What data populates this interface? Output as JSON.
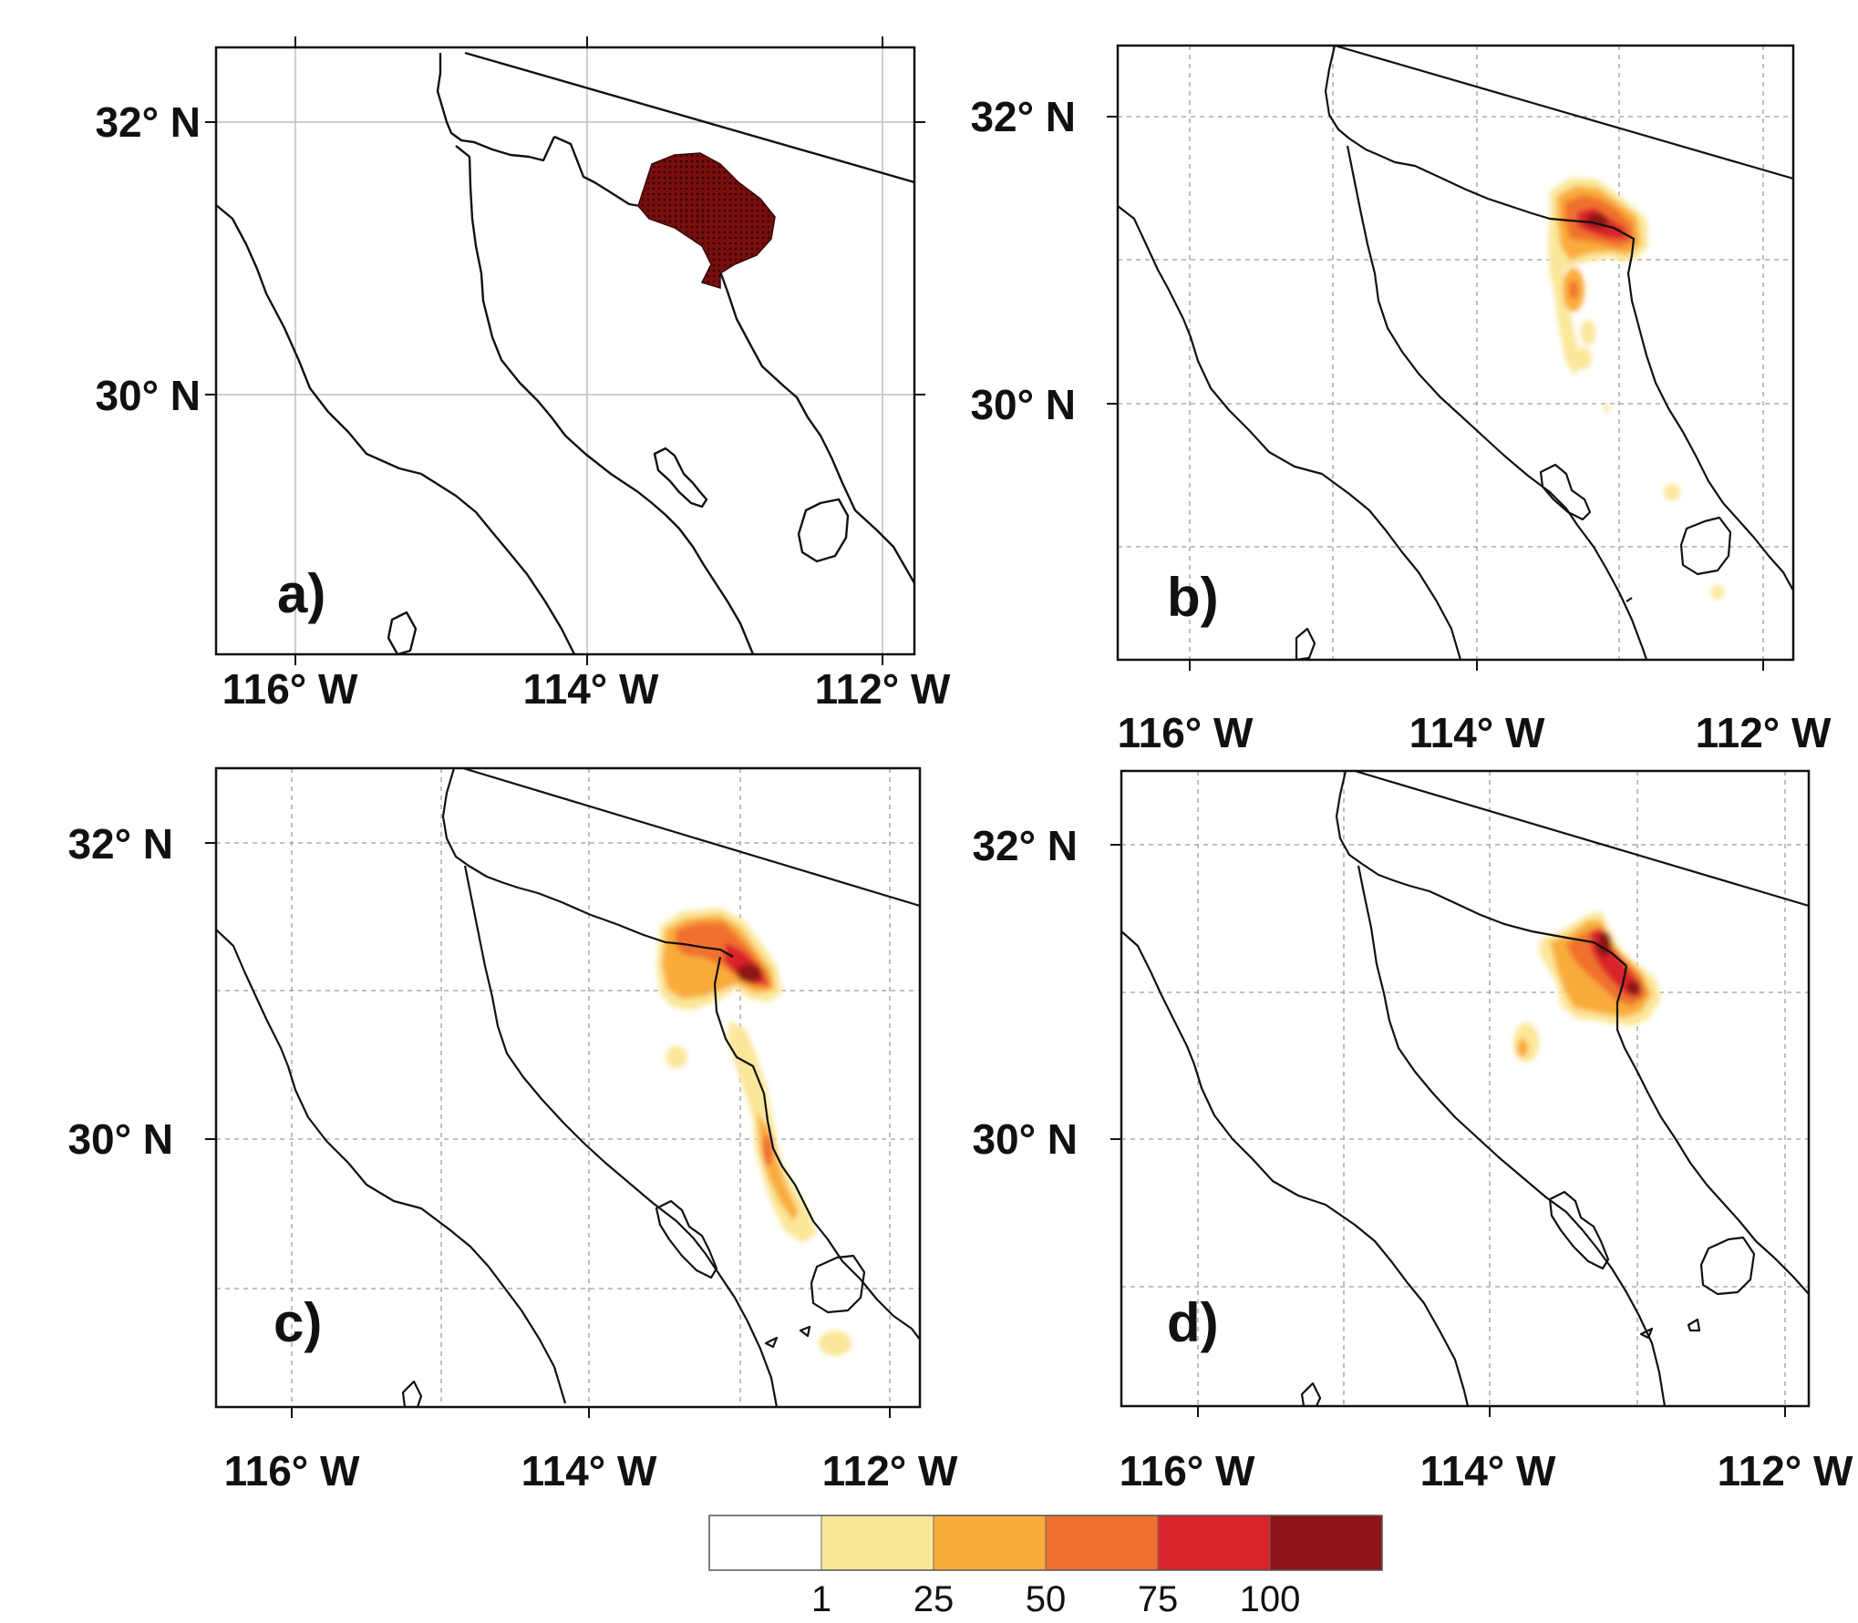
{
  "figure": {
    "panels": [
      {
        "id": "a",
        "label": "a)",
        "gridlines": "solid",
        "lat_labels": [
          "32° N",
          "30° N"
        ],
        "lon_labels": [
          "116° W",
          "114° W",
          "112° W"
        ]
      },
      {
        "id": "b",
        "label": "b)",
        "gridlines": "dashed",
        "lat_labels": [
          "32° N",
          "30° N"
        ],
        "lon_labels": [
          "116° W",
          "114° W",
          "112° W"
        ]
      },
      {
        "id": "c",
        "label": "c)",
        "gridlines": "dashed",
        "lat_labels": [
          "32° N",
          "30° N"
        ],
        "lon_labels": [
          "116° W",
          "114° W",
          "112° W"
        ]
      },
      {
        "id": "d",
        "label": "d)",
        "gridlines": "dashed",
        "lat_labels": [
          "32° N",
          "30° N"
        ],
        "lon_labels": [
          "116° W",
          "114° W",
          "112° W"
        ]
      }
    ],
    "colorbar": {
      "tick_labels": [
        "1",
        "25",
        "50",
        "75",
        "100"
      ],
      "colors": [
        "#ffffff",
        "#fbe79a",
        "#f9ac3a",
        "#f0712f",
        "#d9242a",
        "#8c1417"
      ]
    }
  }
}
